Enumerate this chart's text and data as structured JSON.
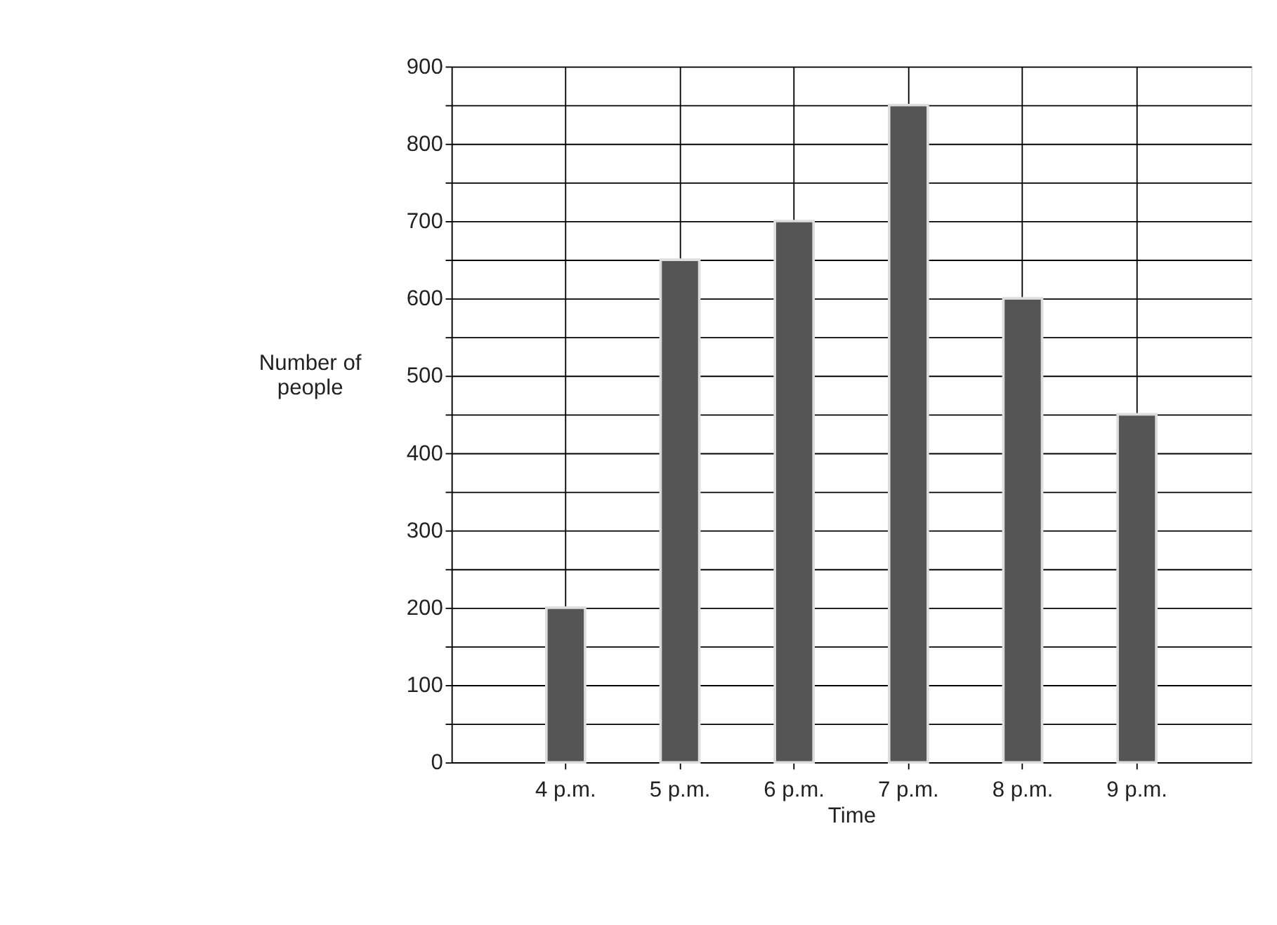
{
  "chart_data": {
    "type": "bar",
    "xlabel": "Time",
    "ylabel": "Number of people",
    "categories": [
      "4 p.m.",
      "5 p.m.",
      "6 p.m.",
      "7 p.m.",
      "8 p.m.",
      "9 p.m."
    ],
    "values": [
      200,
      650,
      700,
      850,
      600,
      450
    ],
    "color": "#555555",
    "ylim": [
      0,
      900
    ],
    "yticks": [
      0,
      {
        "value": 50,
        "label": null
      },
      100,
      {
        "value": 150,
        "label": null
      },
      200,
      {
        "value": 250,
        "label": null
      },
      300,
      {
        "value": 350,
        "label": null
      },
      400,
      {
        "value": 450,
        "label": null
      },
      500,
      {
        "value": 550,
        "label": null
      },
      600,
      {
        "value": 650,
        "label": null
      },
      700,
      {
        "value": 750,
        "label": null
      },
      800,
      {
        "value": 850,
        "label": null
      },
      900
    ],
    "grid": true
  }
}
